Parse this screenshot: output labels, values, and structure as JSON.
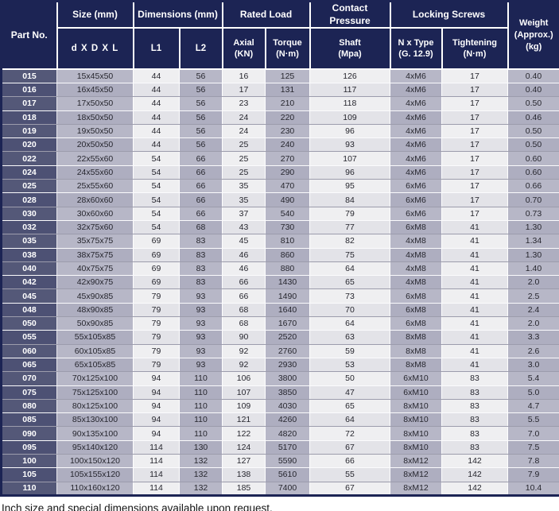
{
  "colors": {
    "header_bg": "#1c2454",
    "part_cell_bg": "#545878",
    "part_cell_bg_alt": "#4d5174",
    "lavender_col_bg": "#b7b7c7",
    "lavender_col_bg_alt": "#aeaec0",
    "light_col_bg": "#efeff1",
    "light_col_bg_alt": "#e3e3e8"
  },
  "table": {
    "header": {
      "part_no": "Part No.",
      "size_group": "Size (mm)",
      "size_sub": "d X D X L",
      "dimensions_group": "Dimensions (mm)",
      "l1": "L1",
      "l2": "L2",
      "rated_load_group": "Rated Load",
      "axial_line1": "Axial",
      "axial_line2": "(KN)",
      "torque_line1": "Torque",
      "torque_line2": "(N·m)",
      "contact_pressure_group": "Contact Pressure",
      "shaft_line1": "Shaft",
      "shaft_line2": "(Mpa)",
      "locking_screws_group": "Locking Screws",
      "n_type_line1": "N x Type",
      "n_type_line2": "(G. 12.9)",
      "tightening_line1": "Tightening",
      "tightening_line2": "(N·m)",
      "weight_line1": "Weight",
      "weight_line2": "(Approx.)",
      "weight_line3": "(kg)"
    },
    "rows": [
      [
        "015",
        "15x45x50",
        "44",
        "56",
        "16",
        "125",
        "126",
        "4xM6",
        "17",
        "0.40"
      ],
      [
        "016",
        "16x45x50",
        "44",
        "56",
        "17",
        "131",
        "117",
        "4xM6",
        "17",
        "0.40"
      ],
      [
        "017",
        "17x50x50",
        "44",
        "56",
        "23",
        "210",
        "118",
        "4xM6",
        "17",
        "0.50"
      ],
      [
        "018",
        "18x50x50",
        "44",
        "56",
        "24",
        "220",
        "109",
        "4xM6",
        "17",
        "0.46"
      ],
      [
        "019",
        "19x50x50",
        "44",
        "56",
        "24",
        "230",
        "96",
        "4xM6",
        "17",
        "0.50"
      ],
      [
        "020",
        "20x50x50",
        "44",
        "56",
        "25",
        "240",
        "93",
        "4xM6",
        "17",
        "0.50"
      ],
      [
        "022",
        "22x55x60",
        "54",
        "66",
        "25",
        "270",
        "107",
        "4xM6",
        "17",
        "0.60"
      ],
      [
        "024",
        "24x55x60",
        "54",
        "66",
        "25",
        "290",
        "96",
        "4xM6",
        "17",
        "0.60"
      ],
      [
        "025",
        "25x55x60",
        "54",
        "66",
        "35",
        "470",
        "95",
        "6xM6",
        "17",
        "0.66"
      ],
      [
        "028",
        "28x60x60",
        "54",
        "66",
        "35",
        "490",
        "84",
        "6xM6",
        "17",
        "0.70"
      ],
      [
        "030",
        "30x60x60",
        "54",
        "66",
        "37",
        "540",
        "79",
        "6xM6",
        "17",
        "0.73"
      ],
      [
        "032",
        "32x75x60",
        "54",
        "68",
        "43",
        "730",
        "77",
        "6xM8",
        "41",
        "1.30"
      ],
      [
        "035",
        "35x75x75",
        "69",
        "83",
        "45",
        "810",
        "82",
        "4xM8",
        "41",
        "1.34"
      ],
      [
        "038",
        "38x75x75",
        "69",
        "83",
        "46",
        "860",
        "75",
        "4xM8",
        "41",
        "1.30"
      ],
      [
        "040",
        "40x75x75",
        "69",
        "83",
        "46",
        "880",
        "64",
        "4xM8",
        "41",
        "1.40"
      ],
      [
        "042",
        "42x90x75",
        "69",
        "83",
        "66",
        "1430",
        "65",
        "4xM8",
        "41",
        "2.0"
      ],
      [
        "045",
        "45x90x85",
        "79",
        "93",
        "66",
        "1490",
        "73",
        "6xM8",
        "41",
        "2.5"
      ],
      [
        "048",
        "48x90x85",
        "79",
        "93",
        "68",
        "1640",
        "70",
        "6xM8",
        "41",
        "2.4"
      ],
      [
        "050",
        "50x90x85",
        "79",
        "93",
        "68",
        "1670",
        "64",
        "6xM8",
        "41",
        "2.0"
      ],
      [
        "055",
        "55x105x85",
        "79",
        "93",
        "90",
        "2520",
        "63",
        "8xM8",
        "41",
        "3.3"
      ],
      [
        "060",
        "60x105x85",
        "79",
        "93",
        "92",
        "2760",
        "59",
        "8xM8",
        "41",
        "2.6"
      ],
      [
        "065",
        "65x105x85",
        "79",
        "93",
        "92",
        "2930",
        "53",
        "8xM8",
        "41",
        "3.0"
      ],
      [
        "070",
        "70x125x100",
        "94",
        "110",
        "106",
        "3800",
        "50",
        "6xM10",
        "83",
        "5.4"
      ],
      [
        "075",
        "75x125x100",
        "94",
        "110",
        "107",
        "3850",
        "47",
        "6xM10",
        "83",
        "5.0"
      ],
      [
        "080",
        "80x125x100",
        "94",
        "110",
        "109",
        "4030",
        "65",
        "8xM10",
        "83",
        "4.7"
      ],
      [
        "085",
        "85x130x100",
        "94",
        "110",
        "121",
        "4260",
        "64",
        "8xM10",
        "83",
        "5.5"
      ],
      [
        "090",
        "90x135x100",
        "94",
        "110",
        "122",
        "4820",
        "72",
        "8xM10",
        "83",
        "7.0"
      ],
      [
        "095",
        "95x140x120",
        "114",
        "130",
        "124",
        "5170",
        "67",
        "8xM10",
        "83",
        "7.5"
      ],
      [
        "100",
        "100x150x120",
        "114",
        "132",
        "127",
        "5590",
        "66",
        "8xM12",
        "142",
        "7.8"
      ],
      [
        "105",
        "105x155x120",
        "114",
        "132",
        "138",
        "5610",
        "55",
        "8xM12",
        "142",
        "7.9"
      ],
      [
        "110",
        "110x160x120",
        "114",
        "132",
        "185",
        "7400",
        "67",
        "8xM12",
        "142",
        "10.4"
      ]
    ]
  },
  "footer": {
    "note": "Inch size and special dimensions available upon request."
  }
}
